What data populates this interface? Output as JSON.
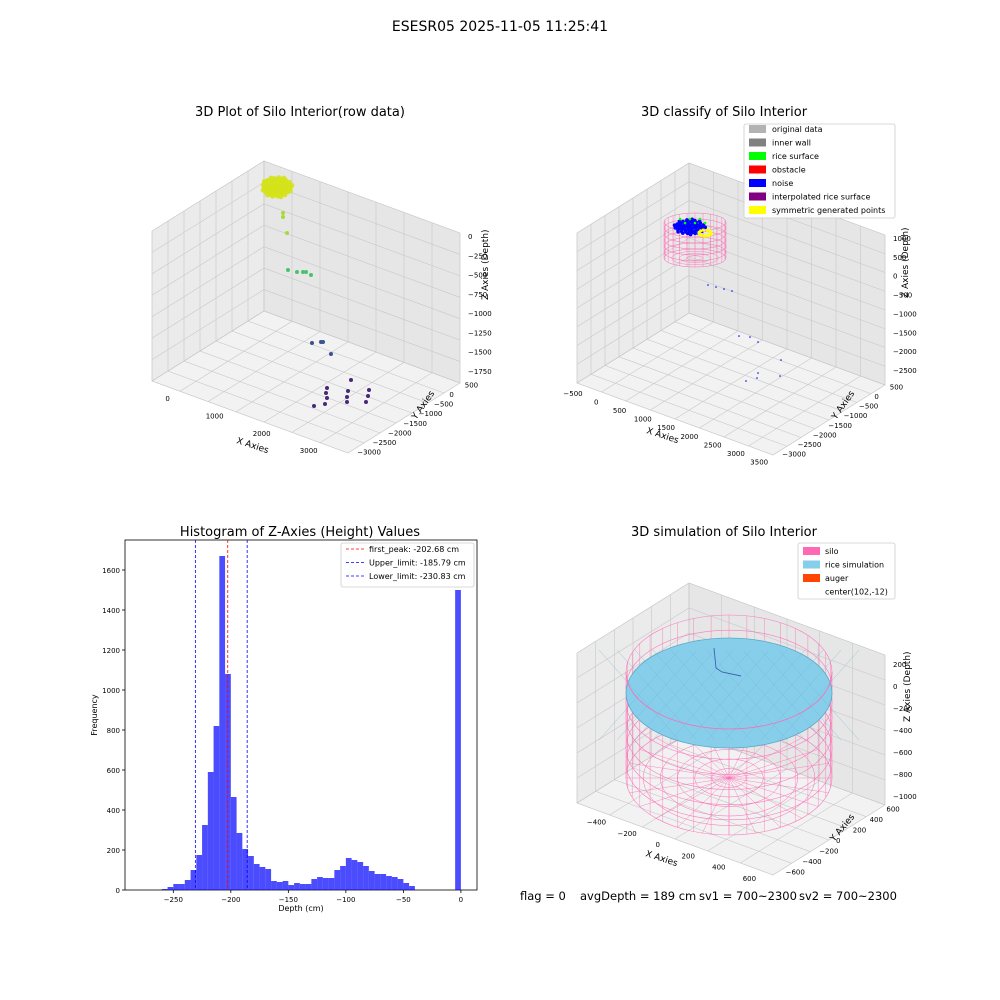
{
  "suptitle": "ESESR05 2025-11-05 11:25:41",
  "footer": {
    "flag": "flag = 0",
    "avg": "avgDepth = 189 cm",
    "sv1": "sv1 = 700~2300",
    "sv2": "sv2 = 700~2300"
  },
  "colors": {
    "silo": "#ff69b4",
    "rice": "#87ceeb",
    "auger": "#ff4500",
    "noise": "#0000ff",
    "rice_surface": "#00ff00",
    "obstacle": "#ff0000",
    "interpolated": "#800080",
    "symmetric": "#ffff00",
    "hist": "#0000ff"
  },
  "chart_data": [
    {
      "type": "scatter",
      "title": "3D Plot of Silo Interior(row data)",
      "xlabel": "X Axies",
      "ylabel": "Y Axies",
      "zlabel": "Z Axies (Depth)",
      "x_ticks": [
        "0",
        "1000",
        "2000",
        "3000"
      ],
      "y_ticks": [
        "500",
        "0",
        "−500",
        "−1000",
        "−1500",
        "−2000",
        "−2500",
        "−3000"
      ],
      "z_ticks": [
        "0",
        "−250",
        "−500",
        "−750",
        "−1000",
        "−1250",
        "−1500",
        "−1750"
      ],
      "colormap": "viridis (by depth)",
      "point_groups": [
        {
          "x": 400,
          "y": 300,
          "z": -50,
          "count": "dense cluster",
          "color": "#d4e21a"
        },
        {
          "x": 300,
          "y": 200,
          "z": -400,
          "color": "#a5db36"
        },
        {
          "x": 900,
          "y": -400,
          "z": -750,
          "color": "#4ac16d"
        },
        {
          "x": 2000,
          "y": -1400,
          "z": -1500,
          "color": "#3b528b"
        },
        {
          "x": 2800,
          "y": -2200,
          "z": -1750,
          "color": "#482878"
        }
      ]
    },
    {
      "type": "scatter",
      "title": "3D classify of Silo Interior",
      "xlabel": "X Axies",
      "ylabel": "Y Axies",
      "zlabel": "Z Axies (Depth)",
      "x_ticks": [
        "−500",
        "0",
        "500",
        "1000",
        "1500",
        "2000",
        "2500",
        "3000",
        "3500"
      ],
      "y_ticks": [
        "500",
        "0",
        "−500",
        "−1000",
        "−1500",
        "−2000",
        "−2500",
        "−3000"
      ],
      "z_ticks": [
        "1000",
        "500",
        "0",
        "−500",
        "−1000",
        "−1500",
        "−2000",
        "−2500"
      ],
      "legend": [
        {
          "label": "original data",
          "color": "#b3b3b3"
        },
        {
          "label": "inner wall",
          "color": "#808080"
        },
        {
          "label": "rice surface",
          "color": "#00ff00"
        },
        {
          "label": "obstacle",
          "color": "#ff0000"
        },
        {
          "label": "noise",
          "color": "#0000ff"
        },
        {
          "label": "interpolated rice surface",
          "color": "#800080"
        },
        {
          "label": "symmetric generated points",
          "color": "#ffff00"
        }
      ],
      "legend_position": "top-right"
    },
    {
      "type": "bar",
      "title": "Histogram of Z-Axies (Height) Values",
      "xlabel": "Depth (cm)",
      "ylabel": "Frequency",
      "xlim": [
        -292,
        14
      ],
      "ylim": [
        0,
        1750
      ],
      "x_ticks": [
        -250,
        -200,
        -150,
        -100,
        -50,
        0
      ],
      "x_tick_labels": [
        "−250",
        "−200",
        "−150",
        "−100",
        "−50",
        "0"
      ],
      "y_ticks": [
        0,
        200,
        400,
        600,
        800,
        1000,
        1200,
        1400,
        1600
      ],
      "bin_width": 5,
      "bins_start": [
        -260,
        -255,
        -250,
        -245,
        -240,
        -235,
        -230,
        -225,
        -220,
        -215,
        -210,
        -205,
        -200,
        -195,
        -190,
        -185,
        -180,
        -175,
        -170,
        -165,
        -160,
        -155,
        -150,
        -145,
        -140,
        -135,
        -130,
        -125,
        -120,
        -115,
        -110,
        -105,
        -100,
        -95,
        -90,
        -85,
        -80,
        -75,
        -70,
        -65,
        -60,
        -55,
        -50,
        -45,
        -40,
        -35,
        -30,
        -25,
        -20,
        -15,
        -10,
        -5,
        -10,
        -5,
        0
      ],
      "values": [
        5,
        15,
        30,
        30,
        50,
        100,
        175,
        325,
        590,
        820,
        1670,
        1080,
        465,
        285,
        205,
        170,
        130,
        115,
        105,
        45,
        40,
        45,
        25,
        35,
        30,
        30,
        55,
        65,
        60,
        60,
        100,
        120,
        160,
        150,
        140,
        120,
        95,
        80,
        80,
        70,
        65,
        55,
        35,
        20,
        0,
        0,
        0,
        0,
        0,
        0,
        0,
        0,
        0,
        0,
        0
      ],
      "spike": {
        "x": -5,
        "width": 5,
        "value": 1500
      },
      "lines": [
        {
          "label": "first_peak: -202.68 cm",
          "value": -202.68,
          "color": "#ff0000"
        },
        {
          "label": "Upper_limit: -185.79 cm",
          "value": -185.79,
          "color": "#0000ff"
        },
        {
          "label": "Lower_limit: -230.83 cm",
          "value": -230.83,
          "color": "#0000ff"
        }
      ],
      "legend_position": "top-right"
    },
    {
      "type": "surface",
      "title": "3D simulation of Silo Interior",
      "xlabel": "X Axies",
      "ylabel": "Y Axies",
      "zlabel": "Z Axies (Depth)",
      "x_ticks": [
        "−400",
        "−200",
        "0",
        "200",
        "400",
        "600"
      ],
      "y_ticks": [
        "600",
        "400",
        "200",
        "0",
        "−200",
        "−400",
        "−600"
      ],
      "z_ticks": [
        "200",
        "0",
        "−200",
        "−400",
        "−600",
        "−800",
        "−1000"
      ],
      "legend": [
        {
          "label": "silo",
          "color": "#ff69b4"
        },
        {
          "label": "rice simulation",
          "color": "#87ceeb"
        },
        {
          "label": "auger",
          "color": "#ff4500"
        },
        {
          "label": "center(102,-12)",
          "color": ""
        }
      ],
      "legend_position": "top-right"
    }
  ]
}
